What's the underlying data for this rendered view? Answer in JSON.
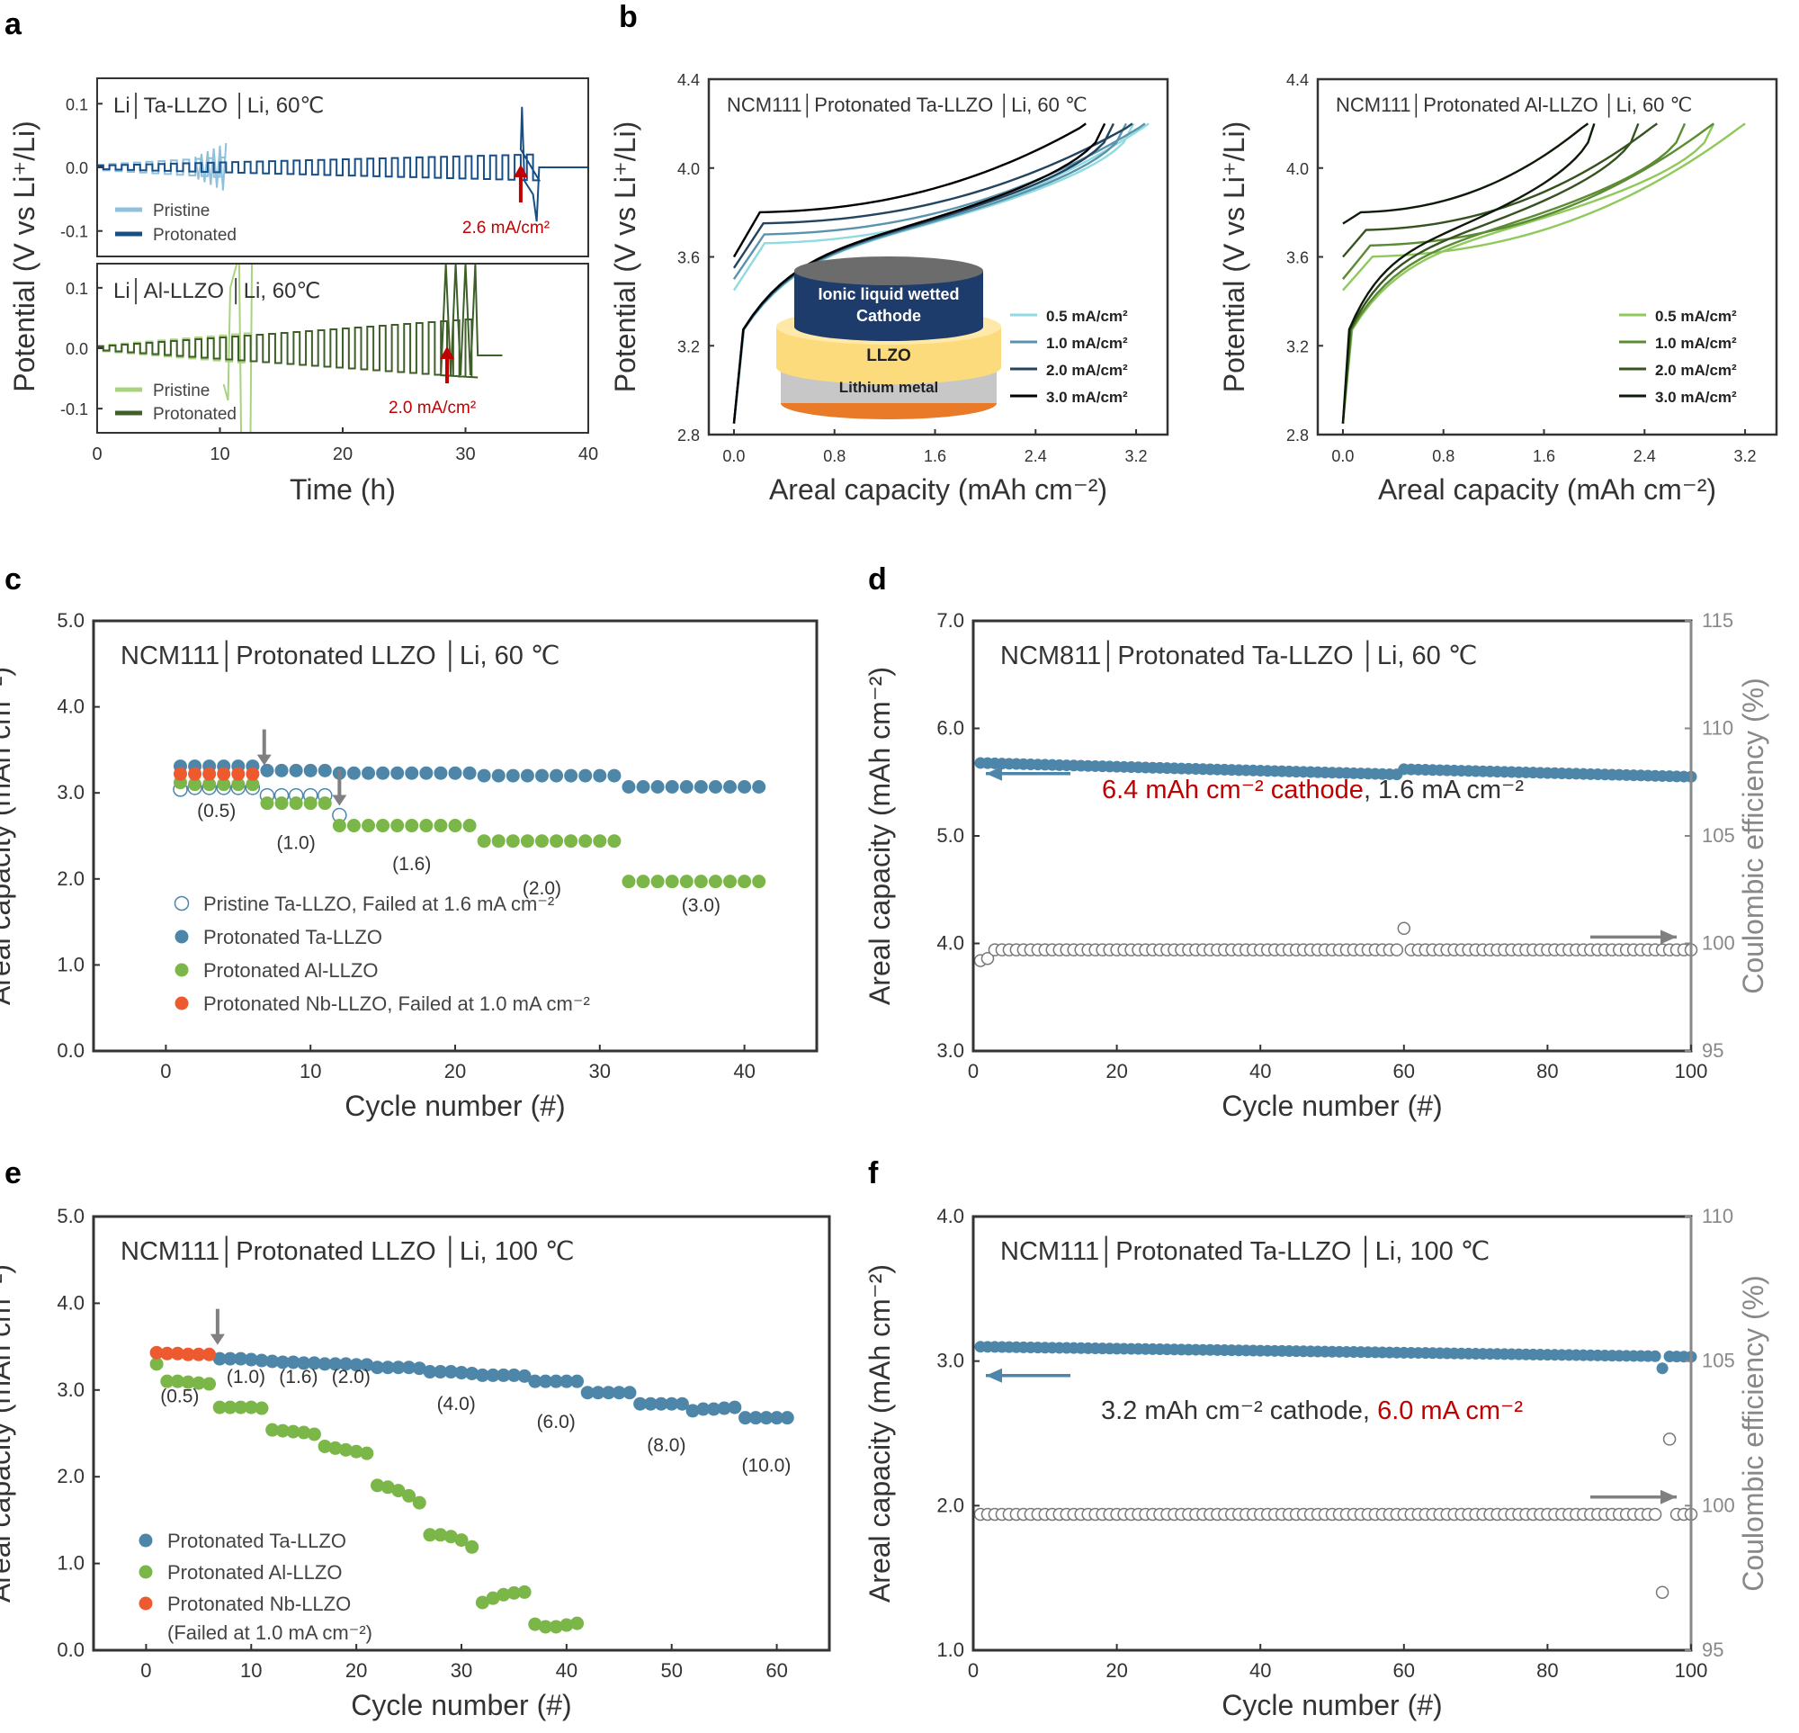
{
  "colors": {
    "ta": "#4d86a8",
    "al": "#7ab648",
    "nb": "#ee5a2f",
    "pristine_ta": "#8fc0dc",
    "protonated_ta": "#164f87",
    "pristine_al": "#a9d37e",
    "protonated_al": "#3e5f28",
    "red": "#c00000",
    "grey": "#808080",
    "axis": "#333333"
  },
  "panels": {
    "a": {
      "label": "a",
      "xlabel": "Time (h)",
      "ylabel": "Potential (V vs Li⁺/Li)"
    },
    "b": {
      "label": "b"
    },
    "c": {
      "label": "c"
    },
    "d": {
      "label": "d"
    },
    "e": {
      "label": "e"
    },
    "f": {
      "label": "f"
    }
  },
  "chart_data": [
    {
      "id": "a_top",
      "type": "line",
      "title": "Li│Ta-LLZO │Li, 60℃",
      "xlim": [
        0,
        40
      ],
      "ylim": [
        -0.14,
        0.14
      ],
      "yticks": [
        0.1,
        0.0,
        -0.1
      ],
      "ytick_labels": [
        "0.1",
        "0.0",
        "-0.1"
      ],
      "legend": [
        "Pristine",
        "Protonated"
      ],
      "annotation": {
        "text": "2.6 mA/cm²",
        "x": 34.5
      },
      "series": [
        {
          "name": "Pristine",
          "fail_time": 10.5
        },
        {
          "name": "Protonated",
          "fail_time": 36
        }
      ]
    },
    {
      "id": "a_bot",
      "type": "line",
      "title": "Li│Al-LLZO │Li, 60℃",
      "xlim": [
        0,
        40
      ],
      "ylim": [
        -0.14,
        0.14
      ],
      "yticks": [
        0.1,
        0.0,
        -0.1
      ],
      "ytick_labels": [
        "0.1",
        "0.0",
        "-0.1"
      ],
      "xticks": [
        0,
        10,
        20,
        30,
        40
      ],
      "xtick_labels": [
        "0",
        "10",
        "20",
        "30",
        "40"
      ],
      "legend": [
        "Pristine",
        "Protonated"
      ],
      "annotation": {
        "text": "2.0 mA/cm²",
        "x": 28.5
      },
      "series": [
        {
          "name": "Pristine",
          "fail_time": 12.5
        },
        {
          "name": "Protonated",
          "fail_time": 31
        }
      ]
    },
    {
      "id": "b1",
      "type": "line",
      "title": "NCM111│Protonated Ta-LLZO │Li, 60 ℃",
      "xlabel": "Areal capacity (mAh cm⁻²)",
      "ylabel": "Potential (V vs Li⁺/Li)",
      "xlim": [
        -0.2,
        3.45
      ],
      "ylim": [
        2.8,
        4.4
      ],
      "xticks": [
        0.0,
        0.8,
        1.6,
        2.4,
        3.2
      ],
      "xtick_labels": [
        "0.0",
        "0.8",
        "1.6",
        "2.4",
        "3.2"
      ],
      "yticks": [
        2.8,
        3.2,
        3.6,
        4.0,
        4.4
      ],
      "ytick_labels": [
        "2.8",
        "3.2",
        "3.6",
        "4.0",
        "4.4"
      ],
      "inset": {
        "cathode": "Ionic liquid wetted",
        "cathode2": "Cathode",
        "llzo": "LLZO",
        "li": "Lithium metal"
      },
      "series": [
        {
          "name": "0.5 mA/cm²",
          "charge_cap": 3.25,
          "discharge_cap": 3.18,
          "v_start": 3.45,
          "plateau": 3.66
        },
        {
          "name": "1.0 mA/cm²",
          "charge_cap": 3.22,
          "discharge_cap": 3.12,
          "v_start": 3.5,
          "plateau": 3.7
        },
        {
          "name": "2.0 mA/cm²",
          "charge_cap": 3.12,
          "discharge_cap": 3.02,
          "v_start": 3.55,
          "plateau": 3.75
        },
        {
          "name": "3.0 mA/cm²",
          "charge_cap": 2.75,
          "discharge_cap": 2.95,
          "v_start": 3.6,
          "plateau": 3.8
        }
      ]
    },
    {
      "id": "b2",
      "type": "line",
      "title": "NCM111│Protonated Al-LLZO │Li, 60 ℃",
      "xlabel": "Areal capacity (mAh cm⁻²)",
      "ylabel": "Potential (V vs Li⁺/Li)",
      "xlim": [
        -0.2,
        3.45
      ],
      "ylim": [
        2.8,
        4.4
      ],
      "xticks": [
        0.0,
        0.8,
        1.6,
        2.4,
        3.2
      ],
      "xtick_labels": [
        "0.0",
        "0.8",
        "1.6",
        "2.4",
        "3.2"
      ],
      "yticks": [
        2.8,
        3.2,
        3.6,
        4.0,
        4.4
      ],
      "ytick_labels": [
        "2.8",
        "3.2",
        "3.6",
        "4.0",
        "4.4"
      ],
      "series": [
        {
          "name": "0.5 mA/cm²",
          "charge_cap": 3.15,
          "discharge_cap": 2.95,
          "v_start": 3.45,
          "plateau": 3.6
        },
        {
          "name": "1.0 mA/cm²",
          "charge_cap": 2.9,
          "discharge_cap": 2.72,
          "v_start": 3.5,
          "plateau": 3.65
        },
        {
          "name": "2.0 mA/cm²",
          "charge_cap": 2.45,
          "discharge_cap": 2.35,
          "v_start": 3.6,
          "plateau": 3.72
        },
        {
          "name": "3.0 mA/cm²",
          "charge_cap": 1.9,
          "discharge_cap": 2.0,
          "v_start": 3.75,
          "plateau": 3.8
        }
      ]
    },
    {
      "id": "c",
      "type": "scatter",
      "title": "NCM111│Protonated LLZO │Li, 60 ℃",
      "xlabel": "Cycle number (#)",
      "ylabel": "Areal capacity (mAh cm⁻²)",
      "xlim": [
        -5,
        45
      ],
      "ylim": [
        0,
        5
      ],
      "xticks": [
        0,
        10,
        20,
        30,
        40
      ],
      "xtick_labels": [
        "0",
        "10",
        "20",
        "30",
        "40"
      ],
      "yticks": [
        0,
        1,
        2,
        3,
        4,
        5
      ],
      "ytick_labels": [
        "0.0",
        "1.0",
        "2.0",
        "3.0",
        "4.0",
        "5.0"
      ],
      "rate_labels": [
        {
          "text": "(0.5)",
          "x": 3.5,
          "y": 2.72
        },
        {
          "text": "(1.0)",
          "x": 9,
          "y": 2.35
        },
        {
          "text": "(1.6)",
          "x": 17,
          "y": 2.1
        },
        {
          "text": "(2.0)",
          "x": 26,
          "y": 1.82
        },
        {
          "text": "(3.0)",
          "x": 37,
          "y": 1.62
        }
      ],
      "arrows": [
        {
          "x": 6.8,
          "y": 3.32
        },
        {
          "x": 12,
          "y": 2.85
        }
      ],
      "series": [
        {
          "name": "Pristine Ta-LLZO, Failed at 1.6 mA cm⁻²",
          "marker": "open",
          "color_key": "ta",
          "x": [
            1,
            2,
            3,
            4,
            5,
            6,
            7,
            8,
            9,
            10,
            11,
            12
          ],
          "y": [
            3.04,
            3.06,
            3.06,
            3.06,
            3.06,
            3.06,
            2.97,
            2.97,
            2.97,
            2.97,
            2.97,
            2.74
          ]
        },
        {
          "name": "Protonated Ta-LLZO",
          "marker": "filled",
          "color_key": "ta",
          "x": [
            1,
            2,
            3,
            4,
            5,
            6,
            7,
            8,
            9,
            10,
            11,
            12,
            13,
            14,
            15,
            16,
            17,
            18,
            19,
            20,
            21,
            22,
            23,
            24,
            25,
            26,
            27,
            28,
            29,
            30,
            31,
            32,
            33,
            34,
            35,
            36,
            37,
            38,
            39,
            40,
            41
          ],
          "y": [
            3.31,
            3.31,
            3.31,
            3.31,
            3.31,
            3.31,
            3.26,
            3.26,
            3.26,
            3.26,
            3.26,
            3.23,
            3.23,
            3.23,
            3.23,
            3.23,
            3.23,
            3.23,
            3.23,
            3.23,
            3.23,
            3.2,
            3.2,
            3.2,
            3.2,
            3.2,
            3.2,
            3.2,
            3.2,
            3.2,
            3.2,
            3.07,
            3.07,
            3.07,
            3.07,
            3.07,
            3.07,
            3.07,
            3.07,
            3.07,
            3.07
          ]
        },
        {
          "name": "Protonated Al-LLZO",
          "marker": "filled",
          "color_key": "al",
          "x": [
            1,
            2,
            3,
            4,
            5,
            6,
            7,
            8,
            9,
            10,
            11,
            12,
            13,
            14,
            15,
            16,
            17,
            18,
            19,
            20,
            21,
            22,
            23,
            24,
            25,
            26,
            27,
            28,
            29,
            30,
            31,
            32,
            33,
            34,
            35,
            36,
            37,
            38,
            39,
            40,
            41
          ],
          "y": [
            3.12,
            3.1,
            3.1,
            3.1,
            3.1,
            3.1,
            2.88,
            2.88,
            2.88,
            2.88,
            2.88,
            2.62,
            2.62,
            2.62,
            2.62,
            2.62,
            2.62,
            2.62,
            2.62,
            2.62,
            2.62,
            2.44,
            2.44,
            2.44,
            2.44,
            2.44,
            2.44,
            2.44,
            2.44,
            2.44,
            2.44,
            1.97,
            1.97,
            1.97,
            1.97,
            1.97,
            1.97,
            1.97,
            1.97,
            1.97,
            1.97
          ]
        },
        {
          "name": "Protonated Nb-LLZO, Failed at 1.0 mA cm⁻²",
          "marker": "filled",
          "color_key": "nb",
          "x": [
            1,
            2,
            3,
            4,
            5,
            6
          ],
          "y": [
            3.22,
            3.22,
            3.22,
            3.22,
            3.22,
            3.22
          ]
        }
      ]
    },
    {
      "id": "d",
      "type": "scatter",
      "title": "NCM811│Protonated Ta-LLZO │Li, 60 ℃",
      "xlabel": "Cycle number (#)",
      "ylabel": "Areal capacity (mAh cm⁻²)",
      "y2label": "Coulombic efficiency (%)",
      "xlim": [
        0,
        100
      ],
      "ylim": [
        3,
        7
      ],
      "y2lim": [
        95,
        115
      ],
      "xticks": [
        0,
        20,
        40,
        60,
        80,
        100
      ],
      "xtick_labels": [
        "0",
        "20",
        "40",
        "60",
        "80",
        "100"
      ],
      "yticks": [
        3,
        4,
        5,
        6,
        7
      ],
      "ytick_labels": [
        "3.0",
        "4.0",
        "5.0",
        "6.0",
        "7.0"
      ],
      "y2ticks": [
        95,
        100,
        105,
        110,
        115
      ],
      "y2tick_labels": [
        "95",
        "100",
        "105",
        "110",
        "115"
      ],
      "note_red": "6.4 mAh cm⁻² cathode",
      "note_black": ", 1.6 mA cm⁻²",
      "series": [
        {
          "name": "Areal capacity",
          "marker": "filled",
          "axis": "left",
          "cycles": 100,
          "start": 5.68,
          "mid": 5.57,
          "jump_cycle": 60,
          "jump_to": 5.62,
          "end": 5.55
        },
        {
          "name": "Coulombic efficiency",
          "marker": "open",
          "axis": "right",
          "cycles": 100,
          "first": [
            99.2,
            99.3,
            99.7
          ],
          "steady": 99.7,
          "spike_cycle": 60,
          "spike": 100.7
        }
      ]
    },
    {
      "id": "e",
      "type": "scatter",
      "title": "NCM111│Protonated LLZO │Li, 100 ℃",
      "xlabel": "Cycle number (#)",
      "ylabel": "Areal capacity (mAh cm⁻²)",
      "xlim": [
        -5,
        65
      ],
      "ylim": [
        0,
        5
      ],
      "xticks": [
        0,
        10,
        20,
        30,
        40,
        50,
        60
      ],
      "xtick_labels": [
        "0",
        "10",
        "20",
        "30",
        "40",
        "50",
        "60"
      ],
      "yticks": [
        0,
        1,
        2,
        3,
        4,
        5
      ],
      "ytick_labels": [
        "0.0",
        "1.0",
        "2.0",
        "3.0",
        "4.0",
        "5.0"
      ],
      "rate_labels": [
        {
          "text": "(0.5)",
          "x": 3.2,
          "y": 2.86
        },
        {
          "text": "(1.0)",
          "x": 9.5,
          "y": 3.08
        },
        {
          "text": "(1.6)",
          "x": 14.5,
          "y": 3.08
        },
        {
          "text": "(2.0)",
          "x": 19.5,
          "y": 3.08
        },
        {
          "text": "(4.0)",
          "x": 29.5,
          "y": 2.77
        },
        {
          "text": "(6.0)",
          "x": 39,
          "y": 2.56
        },
        {
          "text": "(8.0)",
          "x": 49.5,
          "y": 2.29
        },
        {
          "text": "(10.0)",
          "x": 59,
          "y": 2.06
        }
      ],
      "arrows": [
        {
          "x": 6.8,
          "y": 3.52
        }
      ],
      "series": [
        {
          "name": "Protonated Ta-LLZO",
          "marker": "filled",
          "color_key": "ta",
          "x": [
            7,
            8,
            9,
            10,
            11,
            12,
            13,
            14,
            15,
            16,
            17,
            18,
            19,
            20,
            21,
            22,
            23,
            24,
            25,
            26,
            27,
            28,
            29,
            30,
            31,
            32,
            33,
            34,
            35,
            36,
            37,
            38,
            39,
            40,
            41,
            42,
            43,
            44,
            45,
            46,
            47,
            48,
            49,
            50,
            51,
            52,
            53,
            54,
            55,
            56,
            57,
            58,
            59,
            60,
            61
          ],
          "y": [
            3.36,
            3.36,
            3.36,
            3.35,
            3.34,
            3.33,
            3.32,
            3.32,
            3.31,
            3.31,
            3.3,
            3.3,
            3.3,
            3.29,
            3.29,
            3.26,
            3.26,
            3.26,
            3.26,
            3.25,
            3.21,
            3.21,
            3.21,
            3.2,
            3.19,
            3.17,
            3.17,
            3.17,
            3.17,
            3.16,
            3.1,
            3.1,
            3.1,
            3.1,
            3.1,
            2.97,
            2.97,
            2.97,
            2.97,
            2.97,
            2.84,
            2.84,
            2.84,
            2.84,
            2.84,
            2.76,
            2.78,
            2.78,
            2.79,
            2.8,
            2.68,
            2.68,
            2.68,
            2.68,
            2.68
          ]
        },
        {
          "name": "Protonated Al-LLZO",
          "marker": "filled",
          "color_key": "al",
          "x": [
            1,
            2,
            3,
            4,
            5,
            6,
            7,
            8,
            9,
            10,
            11,
            12,
            13,
            14,
            15,
            16,
            17,
            18,
            19,
            20,
            21,
            22,
            23,
            24,
            25,
            26,
            27,
            28,
            29,
            30,
            31,
            32,
            33,
            34,
            35,
            36,
            37,
            38,
            39,
            40,
            41
          ],
          "y": [
            3.3,
            3.1,
            3.1,
            3.09,
            3.08,
            3.07,
            2.8,
            2.8,
            2.8,
            2.8,
            2.79,
            2.54,
            2.53,
            2.52,
            2.51,
            2.49,
            2.35,
            2.33,
            2.31,
            2.29,
            2.27,
            1.9,
            1.88,
            1.84,
            1.78,
            1.7,
            1.33,
            1.33,
            1.31,
            1.27,
            1.19,
            0.55,
            0.6,
            0.64,
            0.66,
            0.67,
            0.3,
            0.27,
            0.27,
            0.29,
            0.31
          ]
        },
        {
          "name": "Protonated Nb-LLZO",
          "name2": "(Failed at 1.0 mA cm⁻²)",
          "marker": "filled",
          "color_key": "nb",
          "x": [
            1,
            2,
            3,
            4,
            5,
            6
          ],
          "y": [
            3.43,
            3.42,
            3.42,
            3.41,
            3.41,
            3.41
          ]
        }
      ]
    },
    {
      "id": "f",
      "type": "scatter",
      "title": "NCM111│Protonated Ta-LLZO │Li, 100 ℃",
      "xlabel": "Cycle number (#)",
      "ylabel": "Areal capacity (mAh cm⁻²)",
      "y2label": "Coulombic efficiency (%)",
      "xlim": [
        0,
        100
      ],
      "ylim": [
        1,
        4
      ],
      "y2lim": [
        95,
        110
      ],
      "xticks": [
        0,
        20,
        40,
        60,
        80,
        100
      ],
      "xtick_labels": [
        "0",
        "20",
        "40",
        "60",
        "80",
        "100"
      ],
      "yticks": [
        1,
        2,
        3,
        4
      ],
      "ytick_labels": [
        "1.0",
        "2.0",
        "3.0",
        "4.0"
      ],
      "y2ticks": [
        95,
        100,
        105,
        110
      ],
      "y2tick_labels": [
        "95",
        "100",
        "105",
        "110"
      ],
      "note_black": "3.2 mAh cm⁻² cathode, ",
      "note_red": "6.0 mA cm⁻²",
      "series": [
        {
          "name": "Areal capacity",
          "marker": "filled",
          "axis": "left",
          "cycles": 100,
          "start": 3.1,
          "end": 3.03,
          "dip_cycle": 96,
          "dip": 2.95
        },
        {
          "name": "Coulombic efficiency",
          "marker": "open",
          "axis": "right",
          "cycles": 100,
          "steady": 99.7,
          "outliers": [
            {
              "cycle": 96,
              "value": 97.0
            },
            {
              "cycle": 97,
              "value": 102.3
            }
          ]
        }
      ]
    }
  ]
}
